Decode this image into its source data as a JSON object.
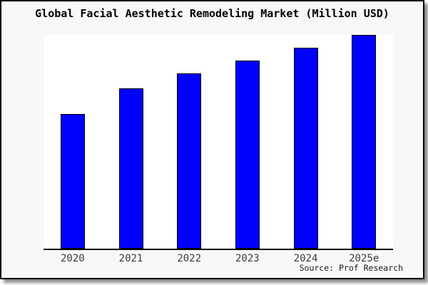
{
  "title": "Global Facial Aesthetic Remodeling Market (Million USD)",
  "source_label": "Source: Prof Research",
  "colors": {
    "bar_fill": "#0000ff",
    "bar_edge": "#000000",
    "frame_background": "#f8f8f8",
    "plot_background": "#ffffff",
    "axis_line": "#000000",
    "title_text": "#000000",
    "tick_text": "#3c3c3c",
    "shadow": "#8f8f8f"
  },
  "chart_data": {
    "type": "bar",
    "title": "Global Facial Aesthetic Remodeling Market (Million USD)",
    "categories": [
      "2020",
      "2021",
      "2022",
      "2023",
      "2024",
      "2025e"
    ],
    "values": [
      63,
      75,
      82,
      88,
      94,
      100
    ],
    "values_unit": "percent of tallest bar (no y-axis scale or value labels shown in image)",
    "xlabel": "",
    "ylabel": "",
    "ylim": [
      0,
      100
    ],
    "grid": false,
    "legend": false,
    "bar_color": "#0000ff",
    "annotations": [
      "Source: Prof Research"
    ]
  }
}
